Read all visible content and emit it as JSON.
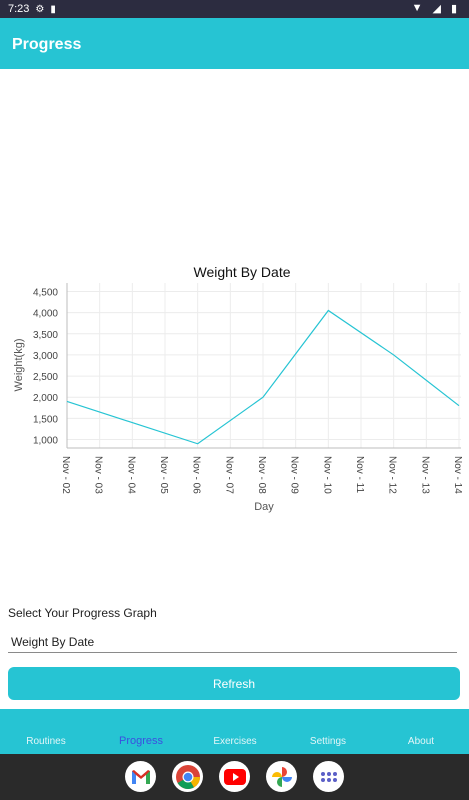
{
  "status_bar": {
    "time": "7:23"
  },
  "app_bar": {
    "title": "Progress"
  },
  "chart_data": {
    "type": "line",
    "title": "Weight By Date",
    "xlabel": "Day",
    "ylabel": "Weight(kg)",
    "categories": [
      "Nov - 02",
      "Nov - 03",
      "Nov - 04",
      "Nov - 05",
      "Nov - 06",
      "Nov - 07",
      "Nov - 08",
      "Nov - 09",
      "Nov - 10",
      "Nov - 11",
      "Nov - 12",
      "Nov - 13",
      "Nov - 14"
    ],
    "yticks": [
      "1,000",
      "1,500",
      "2,000",
      "2,500",
      "3,000",
      "3,500",
      "4,000",
      "4,500"
    ],
    "ylim": [
      800,
      4700
    ],
    "series": [
      {
        "points": [
          {
            "x": 0,
            "y": 1900
          },
          {
            "x": 4,
            "y": 900
          },
          {
            "x": 6,
            "y": 2000
          },
          {
            "x": 8,
            "y": 4050
          },
          {
            "x": 10,
            "y": 3000
          },
          {
            "x": 12,
            "y": 1800
          }
        ],
        "color": "#26c4d3"
      }
    ],
    "grid": true
  },
  "controls": {
    "graph_label": "Select Your Progress Graph",
    "selected_graph": "Weight By Date",
    "refresh_label": "Refresh"
  },
  "tabs": [
    {
      "label": "Routines"
    },
    {
      "label": "Progress",
      "active": true
    },
    {
      "label": "Exercises"
    },
    {
      "label": "Settings"
    },
    {
      "label": "About"
    }
  ],
  "dock": [
    "gmail-icon",
    "chrome-icon",
    "youtube-icon",
    "photos-icon",
    "apps-icon"
  ]
}
